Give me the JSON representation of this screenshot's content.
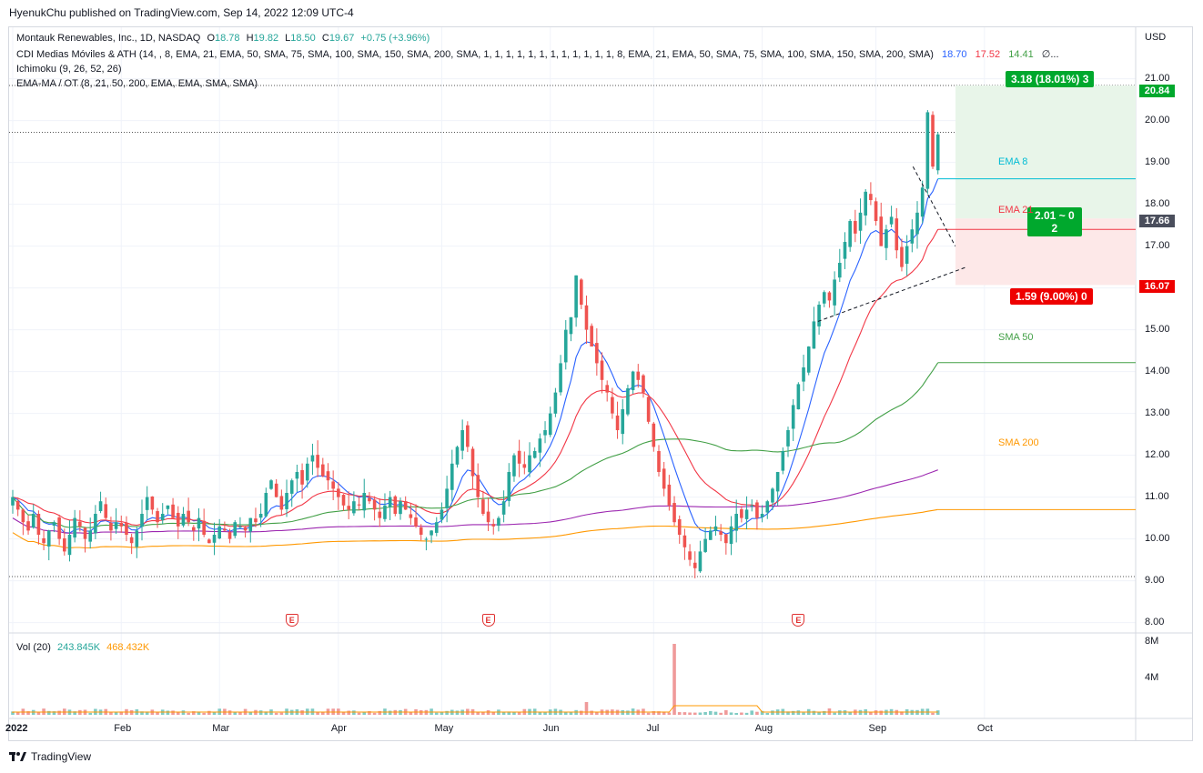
{
  "header": {
    "published": "HyenukChu published on TradingView.com, Sep 14, 2022 12:09 UTC-4"
  },
  "legend": {
    "symbol": "Montauk Renewables, Inc., 1D, NASDAQ",
    "o_label": "O",
    "o": "18.78",
    "h_label": "H",
    "h": "19.82",
    "l_label": "L",
    "l": "18.50",
    "c_label": "C",
    "c": "19.67",
    "change": "+0.75 (+3.96%)",
    "indicator1": "CDI Medias Móviles & ATH (14, , 8, EMA, 21, EMA, 50, SMA, 75, SMA, 100, SMA, 150, SMA, 200, SMA, 1, 1, 1, 1, 1, 1, 1, 1, 1, 1, 1, 1, 8, EMA, 21, EMA, 50, SMA, 75, SMA, 100, SMA, 150, SMA, 200, SMA)",
    "ind1_v1": "18.70",
    "ind1_v2": "17.52",
    "ind1_v3": "14.41",
    "ind1_more": "∅...",
    "indicator2": "Ichimoku (9, 26, 52, 26)",
    "indicator3": "EMA-MA / OT (8, 21, 50, 200, EMA, EMA, SMA, SMA)"
  },
  "currency": "USD",
  "trade_boxes": {
    "target": "3.18 (18.01%) 3",
    "ratio_line1": "2.01 ~ 0",
    "ratio_line2": "2",
    "stop": "1.59 (9.00%) 0"
  },
  "price_tags": {
    "target": "20.84",
    "entry": "17.66",
    "stop": "16.07"
  },
  "ma_labels": {
    "ema8": "EMA 8",
    "ema21": "EMA 21",
    "sma50": "SMA 50",
    "sma200": "SMA 200"
  },
  "earnings_icon": "E",
  "volume": {
    "label": "Vol (20)",
    "v1": "243.845K",
    "v2": "468.432K",
    "ticks": [
      "8M",
      "4M"
    ]
  },
  "footer": {
    "brand": "TradingView",
    "logo_icon": "tradingview-logo-icon"
  },
  "colors": {
    "up": "#26a69a",
    "down": "#ef5350",
    "ema8": "#2962ff",
    "ema21": "#f23645",
    "sma50": "#43a047",
    "sma100": "#9c27b0",
    "sma200": "#ff9800",
    "target_zone": "#e8f5e9",
    "stop_zone": "#fde8e8"
  },
  "chart_data": {
    "type": "candlestick",
    "title": "Montauk Renewables, Inc., 1D, NASDAQ",
    "ylim": [
      7.8,
      21.4
    ],
    "y_ticks": [
      "21.00",
      "20.00",
      "19.00",
      "18.00",
      "17.00",
      "16.00",
      "15.00",
      "14.00",
      "13.00",
      "12.00",
      "11.00",
      "10.00",
      "9.00",
      "8.00"
    ],
    "x_ticks": [
      "2022",
      "Feb",
      "Mar",
      "Apr",
      "May",
      "Jun",
      "Jul",
      "Aug",
      "Sep",
      "Oct"
    ],
    "x_tick_days": [
      0,
      21,
      40,
      63,
      83,
      104,
      124,
      145,
      167,
      188
    ],
    "earnings_days": [
      54,
      92,
      152
    ],
    "closes": [
      11.0,
      10.7,
      10.4,
      10.2,
      10.6,
      10.1,
      9.9,
      10.2,
      10.4,
      10.0,
      9.7,
      10.1,
      10.5,
      10.3,
      10.0,
      10.2,
      10.6,
      10.9,
      10.5,
      10.2,
      10.4,
      10.3,
      10.1,
      9.9,
      10.2,
      10.6,
      11.0,
      10.7,
      10.4,
      10.6,
      10.8,
      10.5,
      10.3,
      10.6,
      10.4,
      10.2,
      10.5,
      10.1,
      9.9,
      10.1,
      10.3,
      10.2,
      10.0,
      10.4,
      10.3,
      10.2,
      10.5,
      10.4,
      10.6,
      11.1,
      11.4,
      11.0,
      10.7,
      11.1,
      11.4,
      11.6,
      11.3,
      11.8,
      12.0,
      11.7,
      11.5,
      11.4,
      11.2,
      11.0,
      10.8,
      10.7,
      10.9,
      10.8,
      11.1,
      10.9,
      10.7,
      10.5,
      10.8,
      11.0,
      10.6,
      10.9,
      10.7,
      10.5,
      10.3,
      10.1,
      10.0,
      10.2,
      10.4,
      10.7,
      11.2,
      11.8,
      12.2,
      12.6,
      12.2,
      11.5,
      11.0,
      10.6,
      10.4,
      10.3,
      10.5,
      10.9,
      11.6,
      12.0,
      11.8,
      11.7,
      12.0,
      12.1,
      12.4,
      12.6,
      13.0,
      13.5,
      14.2,
      15.0,
      15.3,
      16.3,
      15.6,
      15.0,
      14.6,
      14.2,
      13.8,
      13.5,
      13.0,
      12.6,
      13.1,
      13.6,
      14.0,
      13.8,
      13.5,
      12.8,
      12.2,
      11.6,
      11.2,
      10.8,
      10.4,
      10.1,
      9.8,
      9.5,
      9.3,
      9.7,
      10.0,
      10.2,
      10.3,
      10.1,
      9.9,
      10.3,
      10.6,
      10.5,
      10.7,
      10.8,
      10.5,
      10.6,
      10.9,
      11.2,
      11.6,
      12.1,
      12.6,
      13.2,
      13.7,
      14.1,
      14.6,
      15.2,
      15.6,
      15.9,
      15.7,
      16.2,
      16.6,
      17.1,
      17.6,
      17.3,
      17.8,
      18.3,
      18.1,
      17.6,
      17.0,
      17.4,
      17.7,
      16.9,
      16.5,
      17.0,
      17.4,
      17.8,
      18.4,
      20.2,
      18.9,
      19.67
    ]
  }
}
